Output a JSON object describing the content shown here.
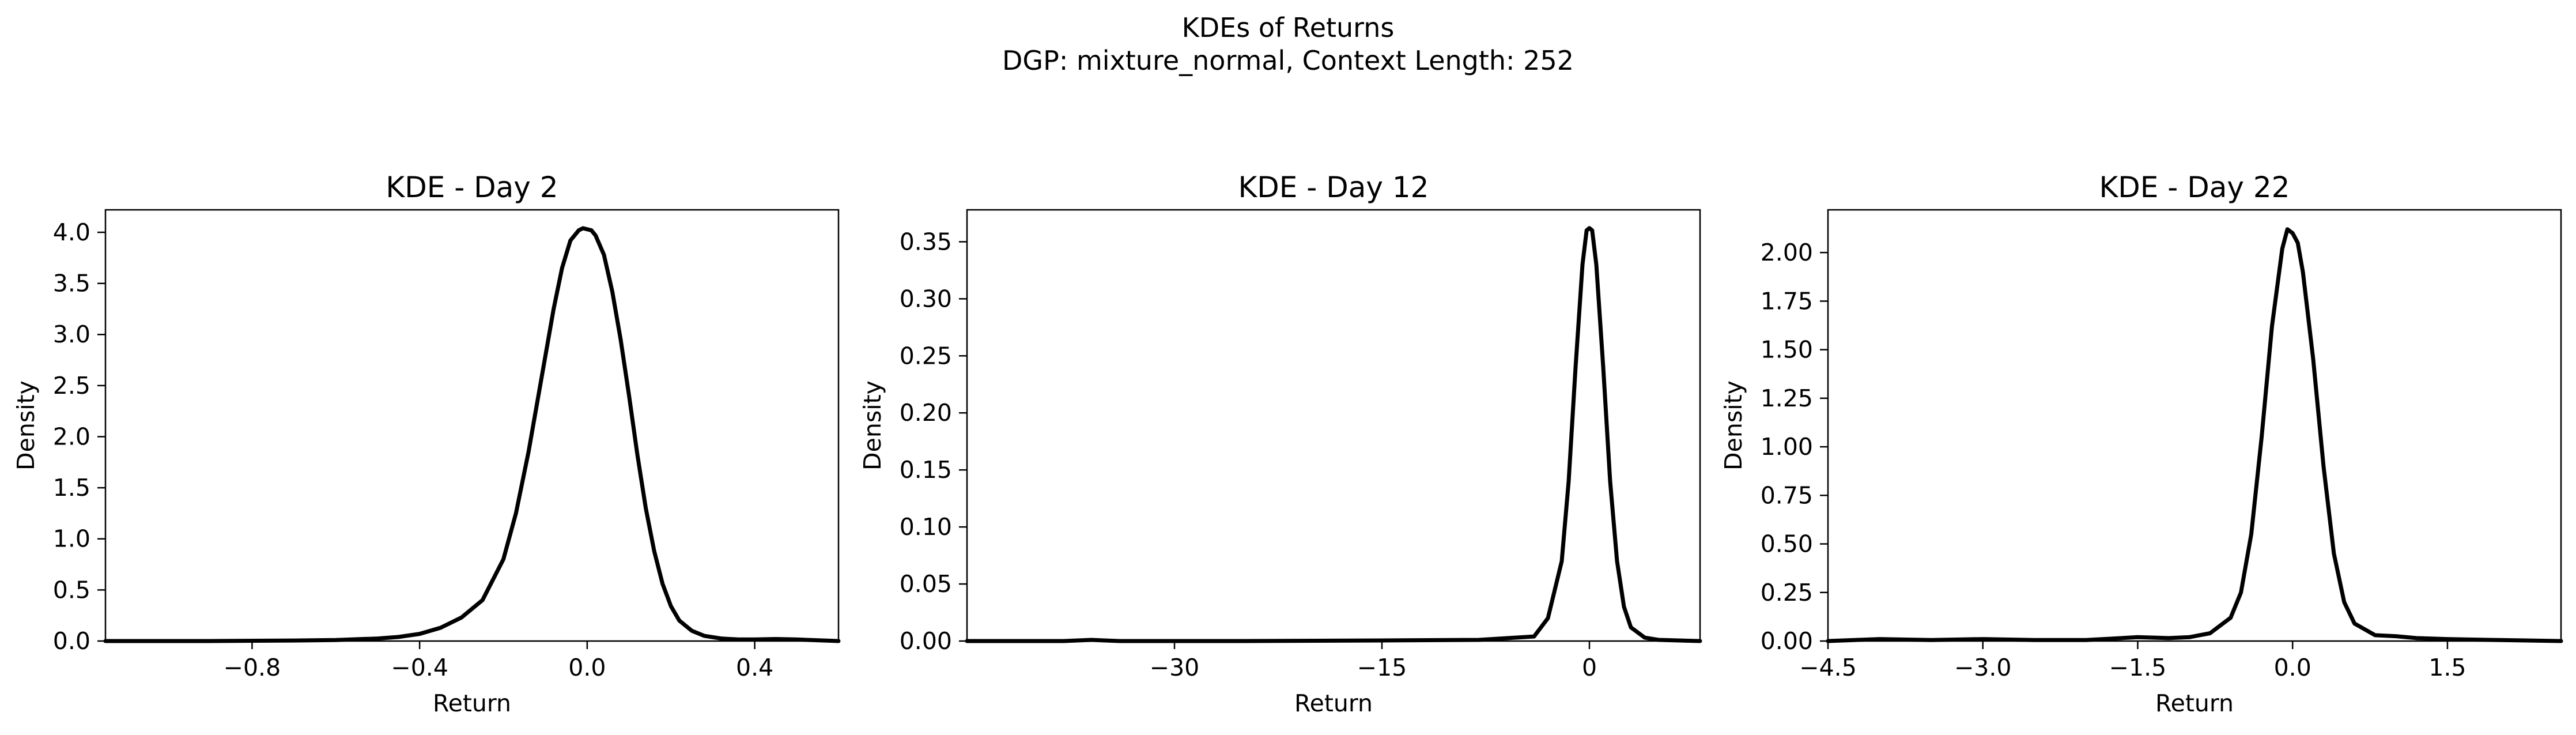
{
  "figure": {
    "title_line1": "KDEs of Returns",
    "title_line2": "DGP: mixture_normal, Context Length: 252"
  },
  "chart_data": [
    {
      "type": "line",
      "title": "KDE - Day 2",
      "xlabel": "Return",
      "ylabel": "Density",
      "xlim": [
        -1.15,
        0.6
      ],
      "ylim": [
        0,
        4.22
      ],
      "xticks": [
        -0.8,
        -0.4,
        0.0,
        0.4
      ],
      "xtick_labels": [
        "−0.8",
        "−0.4",
        "0.0",
        "0.4"
      ],
      "yticks": [
        0,
        0.5,
        1.0,
        1.5,
        2.0,
        2.5,
        3.0,
        3.5,
        4.0
      ],
      "ytick_labels": [
        "0.0",
        "0.5",
        "1.0",
        "1.5",
        "2.0",
        "2.5",
        "3.0",
        "3.5",
        "4.0"
      ],
      "grid": false,
      "line_color": "#000000",
      "series": [
        {
          "x": [
            -1.15,
            -0.9,
            -0.7,
            -0.6,
            -0.5,
            -0.45,
            -0.4,
            -0.35,
            -0.3,
            -0.25,
            -0.2,
            -0.17,
            -0.14,
            -0.11,
            -0.08,
            -0.06,
            -0.04,
            -0.02,
            -0.01,
            0.0,
            0.01,
            0.02,
            0.04,
            0.06,
            0.08,
            0.1,
            0.12,
            0.14,
            0.16,
            0.18,
            0.2,
            0.22,
            0.25,
            0.28,
            0.32,
            0.36,
            0.4,
            0.45,
            0.5,
            0.6
          ],
          "y": [
            0.0,
            0.0,
            0.005,
            0.01,
            0.025,
            0.04,
            0.07,
            0.13,
            0.23,
            0.4,
            0.8,
            1.25,
            1.85,
            2.55,
            3.25,
            3.65,
            3.92,
            4.02,
            4.04,
            4.03,
            4.02,
            3.97,
            3.78,
            3.42,
            2.95,
            2.4,
            1.82,
            1.3,
            0.88,
            0.56,
            0.34,
            0.2,
            0.1,
            0.05,
            0.025,
            0.015,
            0.015,
            0.02,
            0.015,
            0.0
          ]
        }
      ]
    },
    {
      "type": "line",
      "title": "KDE - Day 12",
      "xlabel": "Return",
      "ylabel": "Density",
      "xlim": [
        -45,
        8
      ],
      "ylim": [
        0,
        0.378
      ],
      "xticks": [
        -30,
        -15,
        0
      ],
      "xtick_labels": [
        "−30",
        "−15",
        "0"
      ],
      "yticks": [
        0,
        0.05,
        0.1,
        0.15,
        0.2,
        0.25,
        0.3,
        0.35
      ],
      "ytick_labels": [
        "0.00",
        "0.05",
        "0.10",
        "0.15",
        "0.20",
        "0.25",
        "0.30",
        "0.35"
      ],
      "grid": false,
      "line_color": "#000000",
      "series": [
        {
          "x": [
            -45,
            -38,
            -36,
            -34,
            -25,
            -15,
            -8,
            -4,
            -3,
            -2,
            -1.5,
            -1,
            -0.5,
            -0.2,
            0.0,
            0.2,
            0.5,
            1,
            1.5,
            2,
            2.5,
            3,
            4,
            5,
            8
          ],
          "y": [
            0.0,
            0.0,
            0.001,
            0.0,
            0.0,
            0.0005,
            0.001,
            0.004,
            0.02,
            0.07,
            0.14,
            0.24,
            0.33,
            0.36,
            0.362,
            0.36,
            0.33,
            0.24,
            0.14,
            0.07,
            0.03,
            0.012,
            0.003,
            0.001,
            0.0
          ]
        }
      ]
    },
    {
      "type": "line",
      "title": "KDE - Day 22",
      "xlabel": "Return",
      "ylabel": "Density",
      "xlim": [
        -4.5,
        2.6
      ],
      "ylim": [
        0,
        2.22
      ],
      "xticks": [
        -4.5,
        -3.0,
        -1.5,
        0.0,
        1.5
      ],
      "xtick_labels": [
        "−4.5",
        "−3.0",
        "−1.5",
        "0.0",
        "1.5"
      ],
      "yticks": [
        0,
        0.25,
        0.5,
        0.75,
        1.0,
        1.25,
        1.5,
        1.75,
        2.0
      ],
      "ytick_labels": [
        "0.00",
        "0.25",
        "0.50",
        "0.75",
        "1.00",
        "1.25",
        "1.50",
        "1.75",
        "2.00"
      ],
      "grid": false,
      "line_color": "#000000",
      "series": [
        {
          "x": [
            -4.5,
            -4.0,
            -3.5,
            -3.0,
            -2.5,
            -2.0,
            -1.5,
            -1.2,
            -1.0,
            -0.8,
            -0.6,
            -0.5,
            -0.4,
            -0.3,
            -0.2,
            -0.1,
            -0.05,
            0.0,
            0.05,
            0.1,
            0.2,
            0.3,
            0.4,
            0.5,
            0.6,
            0.8,
            1.0,
            1.2,
            1.5,
            2.0,
            2.6
          ],
          "y": [
            0.0,
            0.01,
            0.005,
            0.01,
            0.005,
            0.005,
            0.02,
            0.015,
            0.02,
            0.04,
            0.12,
            0.25,
            0.55,
            1.05,
            1.62,
            2.02,
            2.12,
            2.1,
            2.05,
            1.9,
            1.45,
            0.9,
            0.45,
            0.2,
            0.09,
            0.03,
            0.025,
            0.015,
            0.01,
            0.005,
            0.0
          ]
        }
      ]
    }
  ]
}
